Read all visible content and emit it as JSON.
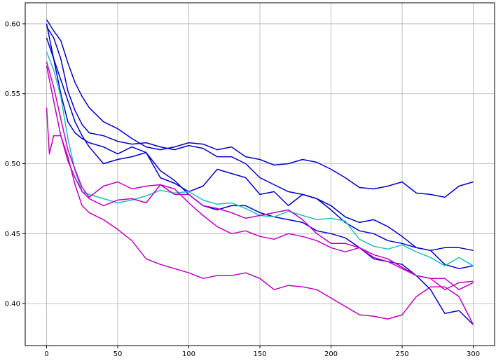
{
  "chart_data": {
    "type": "line",
    "title": "",
    "xlabel": "",
    "ylabel": "",
    "xlim": [
      -15,
      315
    ],
    "ylim": [
      0.37,
      0.615
    ],
    "grid": true,
    "x_ticks": [
      0,
      50,
      100,
      150,
      200,
      250,
      300
    ],
    "y_ticks": [
      0.4,
      0.45,
      0.5,
      0.55,
      0.6
    ],
    "x_tick_labels": [
      "0",
      "50",
      "100",
      "150",
      "200",
      "250",
      "300"
    ],
    "y_tick_labels": [
      "0.40",
      "0.45",
      "0.50",
      "0.55",
      "0.60"
    ],
    "colors": {
      "blue": "#0000cc",
      "cyan": "#1fbfbf",
      "magenta": "#bf00bf"
    },
    "series": [
      {
        "color": "blue",
        "points": [
          [
            0,
            0.603
          ],
          [
            5,
            0.595
          ],
          [
            10,
            0.588
          ],
          [
            15,
            0.572
          ],
          [
            20,
            0.558
          ],
          [
            25,
            0.548
          ],
          [
            30,
            0.54
          ],
          [
            40,
            0.53
          ],
          [
            50,
            0.525
          ],
          [
            60,
            0.518
          ],
          [
            70,
            0.512
          ],
          [
            80,
            0.51
          ],
          [
            90,
            0.512
          ],
          [
            100,
            0.515
          ],
          [
            110,
            0.514
          ],
          [
            120,
            0.51
          ],
          [
            130,
            0.512
          ],
          [
            140,
            0.505
          ],
          [
            150,
            0.503
          ],
          [
            160,
            0.499
          ],
          [
            170,
            0.5
          ],
          [
            180,
            0.503
          ],
          [
            190,
            0.501
          ],
          [
            200,
            0.496
          ],
          [
            210,
            0.49
          ],
          [
            220,
            0.483
          ],
          [
            230,
            0.482
          ],
          [
            240,
            0.484
          ],
          [
            250,
            0.487
          ],
          [
            260,
            0.479
          ],
          [
            270,
            0.478
          ],
          [
            280,
            0.476
          ],
          [
            290,
            0.484
          ],
          [
            300,
            0.487
          ]
        ]
      },
      {
        "color": "blue",
        "points": [
          [
            0,
            0.59
          ],
          [
            5,
            0.575
          ],
          [
            10,
            0.55
          ],
          [
            15,
            0.53
          ],
          [
            20,
            0.522
          ],
          [
            25,
            0.518
          ],
          [
            30,
            0.515
          ],
          [
            40,
            0.512
          ],
          [
            50,
            0.507
          ],
          [
            60,
            0.512
          ],
          [
            70,
            0.508
          ],
          [
            80,
            0.49
          ],
          [
            90,
            0.486
          ],
          [
            100,
            0.48
          ],
          [
            110,
            0.484
          ],
          [
            120,
            0.496
          ],
          [
            130,
            0.493
          ],
          [
            140,
            0.49
          ],
          [
            150,
            0.478
          ],
          [
            160,
            0.48
          ],
          [
            170,
            0.47
          ],
          [
            180,
            0.478
          ],
          [
            190,
            0.475
          ],
          [
            200,
            0.467
          ],
          [
            210,
            0.458
          ],
          [
            220,
            0.452
          ],
          [
            230,
            0.45
          ],
          [
            240,
            0.445
          ],
          [
            250,
            0.443
          ],
          [
            260,
            0.44
          ],
          [
            270,
            0.438
          ],
          [
            280,
            0.44
          ],
          [
            290,
            0.44
          ],
          [
            300,
            0.438
          ]
        ]
      },
      {
        "color": "blue",
        "points": [
          [
            0,
            0.598
          ],
          [
            5,
            0.59
          ],
          [
            10,
            0.575
          ],
          [
            15,
            0.552
          ],
          [
            20,
            0.538
          ],
          [
            25,
            0.528
          ],
          [
            30,
            0.522
          ],
          [
            40,
            0.52
          ],
          [
            50,
            0.516
          ],
          [
            60,
            0.514
          ],
          [
            70,
            0.515
          ],
          [
            80,
            0.512
          ],
          [
            90,
            0.51
          ],
          [
            100,
            0.513
          ],
          [
            110,
            0.511
          ],
          [
            120,
            0.505
          ],
          [
            130,
            0.505
          ],
          [
            140,
            0.5
          ],
          [
            150,
            0.49
          ],
          [
            160,
            0.485
          ],
          [
            170,
            0.48
          ],
          [
            180,
            0.478
          ],
          [
            190,
            0.475
          ],
          [
            200,
            0.47
          ],
          [
            210,
            0.462
          ],
          [
            220,
            0.458
          ],
          [
            230,
            0.46
          ],
          [
            240,
            0.455
          ],
          [
            250,
            0.448
          ],
          [
            260,
            0.44
          ],
          [
            270,
            0.438
          ],
          [
            280,
            0.428
          ],
          [
            290,
            0.425
          ],
          [
            300,
            0.427
          ]
        ]
      },
      {
        "color": "blue",
        "points": [
          [
            0,
            0.6
          ],
          [
            5,
            0.575
          ],
          [
            10,
            0.56
          ],
          [
            15,
            0.545
          ],
          [
            20,
            0.53
          ],
          [
            25,
            0.52
          ],
          [
            30,
            0.512
          ],
          [
            40,
            0.5
          ],
          [
            50,
            0.503
          ],
          [
            60,
            0.505
          ],
          [
            70,
            0.508
          ],
          [
            80,
            0.495
          ],
          [
            90,
            0.488
          ],
          [
            100,
            0.478
          ],
          [
            110,
            0.47
          ],
          [
            120,
            0.467
          ],
          [
            130,
            0.47
          ],
          [
            140,
            0.47
          ],
          [
            150,
            0.465
          ],
          [
            160,
            0.462
          ],
          [
            170,
            0.46
          ],
          [
            180,
            0.458
          ],
          [
            190,
            0.452
          ],
          [
            200,
            0.45
          ],
          [
            210,
            0.447
          ],
          [
            220,
            0.44
          ],
          [
            230,
            0.432
          ],
          [
            240,
            0.43
          ],
          [
            250,
            0.428
          ],
          [
            260,
            0.42
          ],
          [
            270,
            0.41
          ],
          [
            280,
            0.393
          ],
          [
            290,
            0.395
          ],
          [
            300,
            0.385
          ]
        ]
      },
      {
        "color": "cyan",
        "points": [
          [
            0,
            0.58
          ],
          [
            5,
            0.567
          ],
          [
            10,
            0.548
          ],
          [
            15,
            0.518
          ],
          [
            20,
            0.495
          ],
          [
            25,
            0.48
          ],
          [
            30,
            0.478
          ],
          [
            40,
            0.475
          ],
          [
            50,
            0.472
          ],
          [
            60,
            0.474
          ],
          [
            70,
            0.477
          ],
          [
            80,
            0.481
          ],
          [
            90,
            0.479
          ],
          [
            100,
            0.48
          ],
          [
            110,
            0.474
          ],
          [
            120,
            0.471
          ],
          [
            130,
            0.472
          ],
          [
            140,
            0.468
          ],
          [
            150,
            0.463
          ],
          [
            160,
            0.462
          ],
          [
            170,
            0.466
          ],
          [
            180,
            0.463
          ],
          [
            190,
            0.46
          ],
          [
            200,
            0.461
          ],
          [
            210,
            0.459
          ],
          [
            220,
            0.446
          ],
          [
            230,
            0.441
          ],
          [
            240,
            0.439
          ],
          [
            250,
            0.442
          ],
          [
            260,
            0.437
          ],
          [
            270,
            0.433
          ],
          [
            280,
            0.427
          ],
          [
            290,
            0.433
          ],
          [
            300,
            0.427
          ]
        ]
      },
      {
        "color": "magenta",
        "points": [
          [
            0,
            0.573
          ],
          [
            5,
            0.555
          ],
          [
            10,
            0.532
          ],
          [
            15,
            0.51
          ],
          [
            20,
            0.496
          ],
          [
            25,
            0.483
          ],
          [
            30,
            0.476
          ],
          [
            40,
            0.484
          ],
          [
            50,
            0.487
          ],
          [
            60,
            0.482
          ],
          [
            70,
            0.484
          ],
          [
            80,
            0.485
          ],
          [
            90,
            0.478
          ],
          [
            100,
            0.478
          ],
          [
            110,
            0.47
          ],
          [
            120,
            0.468
          ],
          [
            130,
            0.465
          ],
          [
            140,
            0.461
          ],
          [
            150,
            0.463
          ],
          [
            160,
            0.465
          ],
          [
            170,
            0.467
          ],
          [
            180,
            0.46
          ],
          [
            190,
            0.45
          ],
          [
            200,
            0.443
          ],
          [
            210,
            0.443
          ],
          [
            220,
            0.44
          ],
          [
            230,
            0.433
          ],
          [
            240,
            0.43
          ],
          [
            250,
            0.425
          ],
          [
            260,
            0.42
          ],
          [
            270,
            0.418
          ],
          [
            280,
            0.41
          ],
          [
            290,
            0.415
          ],
          [
            300,
            0.416
          ]
        ]
      },
      {
        "color": "magenta",
        "points": [
          [
            0,
            0.57
          ],
          [
            5,
            0.545
          ],
          [
            10,
            0.52
          ],
          [
            15,
            0.502
          ],
          [
            20,
            0.49
          ],
          [
            25,
            0.48
          ],
          [
            30,
            0.475
          ],
          [
            40,
            0.47
          ],
          [
            50,
            0.474
          ],
          [
            60,
            0.475
          ],
          [
            70,
            0.472
          ],
          [
            80,
            0.485
          ],
          [
            90,
            0.482
          ],
          [
            100,
            0.472
          ],
          [
            110,
            0.463
          ],
          [
            120,
            0.455
          ],
          [
            130,
            0.45
          ],
          [
            140,
            0.452
          ],
          [
            150,
            0.448
          ],
          [
            160,
            0.446
          ],
          [
            170,
            0.45
          ],
          [
            180,
            0.448
          ],
          [
            190,
            0.445
          ],
          [
            200,
            0.44
          ],
          [
            210,
            0.437
          ],
          [
            220,
            0.44
          ],
          [
            230,
            0.435
          ],
          [
            240,
            0.432
          ],
          [
            250,
            0.426
          ],
          [
            260,
            0.42
          ],
          [
            270,
            0.418
          ],
          [
            280,
            0.418
          ],
          [
            290,
            0.41
          ],
          [
            300,
            0.415
          ]
        ]
      },
      {
        "color": "magenta",
        "points": [
          [
            0,
            0.54
          ],
          [
            2,
            0.507
          ],
          [
            5,
            0.52
          ],
          [
            10,
            0.52
          ],
          [
            15,
            0.505
          ],
          [
            20,
            0.485
          ],
          [
            25,
            0.47
          ],
          [
            30,
            0.465
          ],
          [
            40,
            0.46
          ],
          [
            50,
            0.453
          ],
          [
            60,
            0.445
          ],
          [
            70,
            0.432
          ],
          [
            80,
            0.428
          ],
          [
            90,
            0.425
          ],
          [
            100,
            0.422
          ],
          [
            110,
            0.418
          ],
          [
            120,
            0.42
          ],
          [
            130,
            0.42
          ],
          [
            140,
            0.422
          ],
          [
            150,
            0.418
          ],
          [
            160,
            0.41
          ],
          [
            170,
            0.413
          ],
          [
            180,
            0.412
          ],
          [
            190,
            0.41
          ],
          [
            200,
            0.404
          ],
          [
            210,
            0.398
          ],
          [
            220,
            0.392
          ],
          [
            230,
            0.391
          ],
          [
            240,
            0.389
          ],
          [
            250,
            0.392
          ],
          [
            260,
            0.405
          ],
          [
            270,
            0.412
          ],
          [
            280,
            0.412
          ],
          [
            290,
            0.405
          ],
          [
            300,
            0.385
          ]
        ]
      }
    ]
  }
}
